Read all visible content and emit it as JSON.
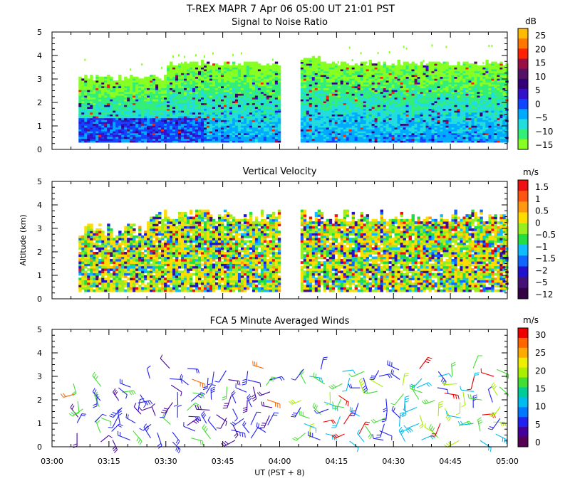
{
  "header": {
    "title": "T-REX  MAPR  7 Apr 06  05:00 UT  21:01  PST"
  },
  "chart_data": [
    {
      "type": "heatmap",
      "title": "Signal to Noise Ratio",
      "xlabel": "",
      "ylabel": "",
      "ylim": [
        0,
        5
      ],
      "yticks": [
        "0",
        "1",
        "2",
        "3",
        "4",
        "5"
      ],
      "xlim": [
        "03:00",
        "05:00"
      ],
      "colorbar": {
        "unit": "dB",
        "labels": [
          "25",
          "20",
          "15",
          "10",
          "5",
          "0",
          "−5",
          "−10",
          "−15"
        ],
        "colors": [
          "#ffbb00",
          "#ff7700",
          "#ff2200",
          "#991144",
          "#551166",
          "#330077",
          "#3311cc",
          "#1144ff",
          "#00aaff",
          "#22dddd",
          "#33ee77",
          "#88ff22"
        ]
      },
      "data_gap": [
        "04:00",
        "04:08"
      ],
      "coverage_top_km": 3.6,
      "coverage_bottom_km": 0.3
    },
    {
      "type": "heatmap",
      "title": "Vertical Velocity",
      "ylabel": "Altitude (km)",
      "ylim": [
        0,
        5
      ],
      "yticks": [
        "0",
        "1",
        "2",
        "3",
        "4",
        "5"
      ],
      "xlim": [
        "03:00",
        "05:00"
      ],
      "colorbar": {
        "unit": "m/s",
        "labels": [
          "1.5",
          "1",
          "0.5",
          "0",
          "−0.5",
          "−1",
          "−1.5",
          "−2",
          "−5",
          "−12"
        ],
        "colors": [
          "#ee1111",
          "#ff5511",
          "#ff9911",
          "#ffdd00",
          "#99ee22",
          "#22dd44",
          "#11bbff",
          "#1166ff",
          "#2211cc",
          "#441177",
          "#330044"
        ]
      },
      "data_gap": [
        "04:00",
        "04:08"
      ]
    },
    {
      "type": "scatter",
      "title": "FCA 5 Minute Averaged Winds",
      "xlabel": "UT  (PST + 8)",
      "ylim": [
        0,
        5
      ],
      "yticks": [
        "0",
        "1",
        "2",
        "3",
        "4",
        "5"
      ],
      "xticks": [
        "03:00",
        "03:15",
        "03:30",
        "03:45",
        "04:00",
        "04:15",
        "04:30",
        "04:45",
        "05:00"
      ],
      "colorbar": {
        "unit": "m/s",
        "labels": [
          "30",
          "25",
          "20",
          "15",
          "10",
          "5",
          "0"
        ],
        "colors": [
          "#ee0000",
          "#ff6600",
          "#ffaa00",
          "#eeee00",
          "#aaee00",
          "#44dd33",
          "#00cc99",
          "#00bbee",
          "#0077ff",
          "#2222ee",
          "#440099",
          "#550055"
        ]
      }
    }
  ]
}
